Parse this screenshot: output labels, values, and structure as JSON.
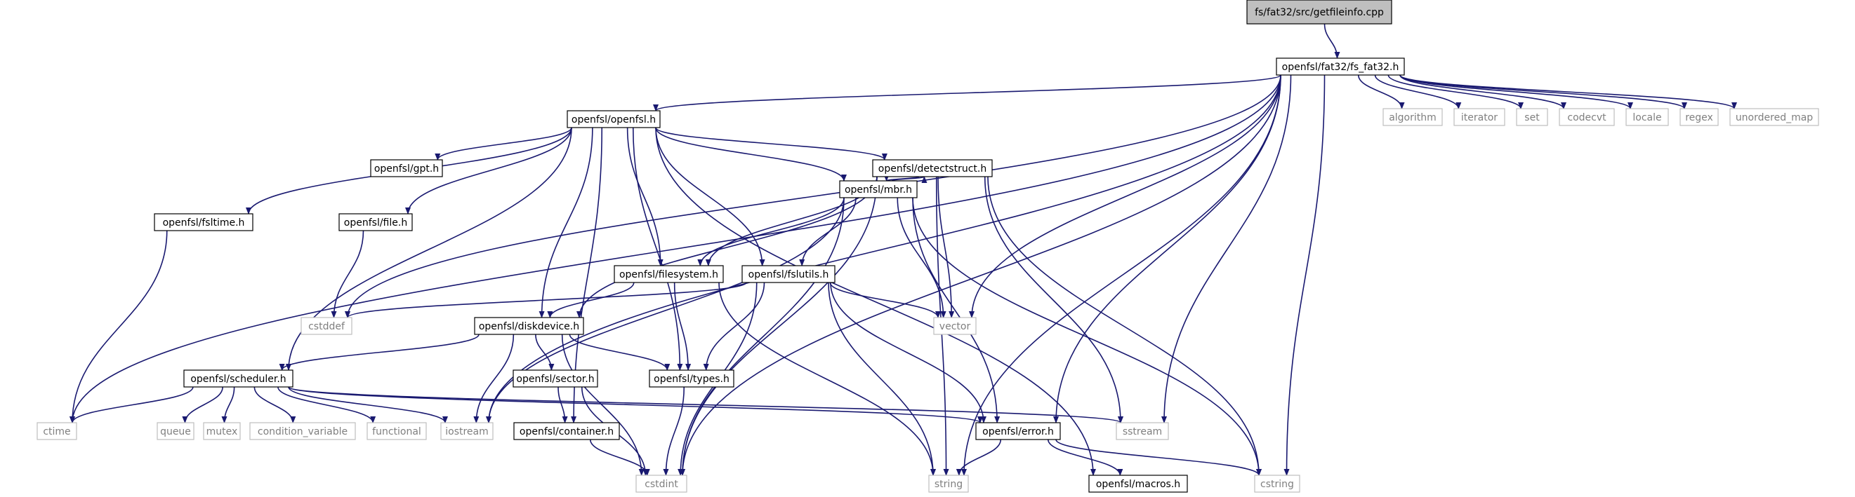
{
  "colors": {
    "edge": "#191970",
    "root_fill": "#bfbfbf",
    "local_border": "#000000",
    "system_border": "#bfbfbf",
    "system_text": "#7f7f7f"
  },
  "nodes": [
    {
      "id": "getfileinfo",
      "label": "fs/fat32/src/getfileinfo.cpp",
      "kind": "root"
    },
    {
      "id": "fs_fat32",
      "label": "openfsl/fat32/fs_fat32.h",
      "kind": "local"
    },
    {
      "id": "openfsl",
      "label": "openfsl/openfsl.h",
      "kind": "local"
    },
    {
      "id": "algorithm",
      "label": "algorithm",
      "kind": "system"
    },
    {
      "id": "iterator",
      "label": "iterator",
      "kind": "system"
    },
    {
      "id": "set",
      "label": "set",
      "kind": "system"
    },
    {
      "id": "codecvt",
      "label": "codecvt",
      "kind": "system"
    },
    {
      "id": "locale",
      "label": "locale",
      "kind": "system"
    },
    {
      "id": "regex",
      "label": "regex",
      "kind": "system"
    },
    {
      "id": "unordered_map",
      "label": "unordered_map",
      "kind": "system"
    },
    {
      "id": "gpt",
      "label": "openfsl/gpt.h",
      "kind": "local"
    },
    {
      "id": "detectstruct",
      "label": "openfsl/detectstruct.h",
      "kind": "local"
    },
    {
      "id": "fsltime",
      "label": "openfsl/fsltime.h",
      "kind": "local"
    },
    {
      "id": "file",
      "label": "openfsl/file.h",
      "kind": "local"
    },
    {
      "id": "mbr",
      "label": "openfsl/mbr.h",
      "kind": "local"
    },
    {
      "id": "filesystem",
      "label": "openfsl/filesystem.h",
      "kind": "local"
    },
    {
      "id": "fslutils",
      "label": "openfsl/fslutils.h",
      "kind": "local"
    },
    {
      "id": "cstddef",
      "label": "cstddef",
      "kind": "system"
    },
    {
      "id": "vector",
      "label": "vector",
      "kind": "system"
    },
    {
      "id": "diskdevice",
      "label": "openfsl/diskdevice.h",
      "kind": "local"
    },
    {
      "id": "scheduler",
      "label": "openfsl/scheduler.h",
      "kind": "local"
    },
    {
      "id": "sector",
      "label": "openfsl/sector.h",
      "kind": "local"
    },
    {
      "id": "types",
      "label": "openfsl/types.h",
      "kind": "local"
    },
    {
      "id": "ctime",
      "label": "ctime",
      "kind": "system"
    },
    {
      "id": "queue",
      "label": "queue",
      "kind": "system"
    },
    {
      "id": "mutex",
      "label": "mutex",
      "kind": "system"
    },
    {
      "id": "condition_variable",
      "label": "condition_variable",
      "kind": "system"
    },
    {
      "id": "functional",
      "label": "functional",
      "kind": "system"
    },
    {
      "id": "iostream",
      "label": "iostream",
      "kind": "system"
    },
    {
      "id": "container",
      "label": "openfsl/container.h",
      "kind": "local"
    },
    {
      "id": "error",
      "label": "openfsl/error.h",
      "kind": "local"
    },
    {
      "id": "sstream",
      "label": "sstream",
      "kind": "system"
    },
    {
      "id": "string",
      "label": "string",
      "kind": "system"
    },
    {
      "id": "macros",
      "label": "openfsl/macros.h",
      "kind": "local"
    },
    {
      "id": "cstring",
      "label": "cstring",
      "kind": "system"
    },
    {
      "id": "cstdint",
      "label": "cstdint",
      "kind": "system"
    }
  ],
  "edges": [
    [
      "getfileinfo",
      "fs_fat32"
    ],
    [
      "fs_fat32",
      "openfsl"
    ],
    [
      "fs_fat32",
      "algorithm"
    ],
    [
      "fs_fat32",
      "iterator"
    ],
    [
      "fs_fat32",
      "set"
    ],
    [
      "fs_fat32",
      "codecvt"
    ],
    [
      "fs_fat32",
      "locale"
    ],
    [
      "fs_fat32",
      "regex"
    ],
    [
      "fs_fat32",
      "unordered_map"
    ],
    [
      "fs_fat32",
      "vector"
    ],
    [
      "fs_fat32",
      "sstream"
    ],
    [
      "fs_fat32",
      "string"
    ],
    [
      "fs_fat32",
      "cstring"
    ],
    [
      "fs_fat32",
      "cstdint"
    ],
    [
      "fs_fat32",
      "ctime"
    ],
    [
      "fs_fat32",
      "cstddef"
    ],
    [
      "fs_fat32",
      "iostream"
    ],
    [
      "fs_fat32",
      "error"
    ],
    [
      "openfsl",
      "gpt"
    ],
    [
      "openfsl",
      "detectstruct"
    ],
    [
      "openfsl",
      "fsltime"
    ],
    [
      "openfsl",
      "file"
    ],
    [
      "openfsl",
      "mbr"
    ],
    [
      "openfsl",
      "filesystem"
    ],
    [
      "openfsl",
      "fslutils"
    ],
    [
      "openfsl",
      "diskdevice"
    ],
    [
      "openfsl",
      "scheduler"
    ],
    [
      "openfsl",
      "types"
    ],
    [
      "openfsl",
      "container"
    ],
    [
      "openfsl",
      "macros"
    ],
    [
      "detectstruct",
      "mbr"
    ],
    [
      "detectstruct",
      "filesystem"
    ],
    [
      "detectstruct",
      "diskdevice"
    ],
    [
      "detectstruct",
      "vector"
    ],
    [
      "detectstruct",
      "sstream"
    ],
    [
      "detectstruct",
      "string"
    ],
    [
      "detectstruct",
      "cstring"
    ],
    [
      "detectstruct",
      "cstdint"
    ],
    [
      "mbr",
      "detectstruct"
    ],
    [
      "mbr",
      "filesystem"
    ],
    [
      "mbr",
      "fslutils"
    ],
    [
      "mbr",
      "vector"
    ],
    [
      "mbr",
      "iostream"
    ],
    [
      "mbr",
      "cstdint"
    ],
    [
      "mbr",
      "error"
    ],
    [
      "mbr",
      "cstring"
    ],
    [
      "fsltime",
      "ctime"
    ],
    [
      "file",
      "cstddef"
    ],
    [
      "filesystem",
      "diskdevice"
    ],
    [
      "filesystem",
      "types"
    ],
    [
      "filesystem",
      "string"
    ],
    [
      "fslutils",
      "cstddef"
    ],
    [
      "fslutils",
      "vector"
    ],
    [
      "fslutils",
      "types"
    ],
    [
      "fslutils",
      "error"
    ],
    [
      "fslutils",
      "string"
    ],
    [
      "fslutils",
      "cstdint"
    ],
    [
      "diskdevice",
      "scheduler"
    ],
    [
      "diskdevice",
      "sector"
    ],
    [
      "diskdevice",
      "types"
    ],
    [
      "diskdevice",
      "iostream"
    ],
    [
      "diskdevice",
      "cstdint"
    ],
    [
      "scheduler",
      "ctime"
    ],
    [
      "scheduler",
      "queue"
    ],
    [
      "scheduler",
      "mutex"
    ],
    [
      "scheduler",
      "condition_variable"
    ],
    [
      "scheduler",
      "functional"
    ],
    [
      "scheduler",
      "iostream"
    ],
    [
      "scheduler",
      "error"
    ],
    [
      "scheduler",
      "sstream"
    ],
    [
      "sector",
      "container"
    ],
    [
      "sector",
      "cstdint"
    ],
    [
      "types",
      "cstdint"
    ],
    [
      "container",
      "cstdint"
    ],
    [
      "error",
      "string"
    ],
    [
      "error",
      "macros"
    ],
    [
      "error",
      "cstring"
    ]
  ]
}
